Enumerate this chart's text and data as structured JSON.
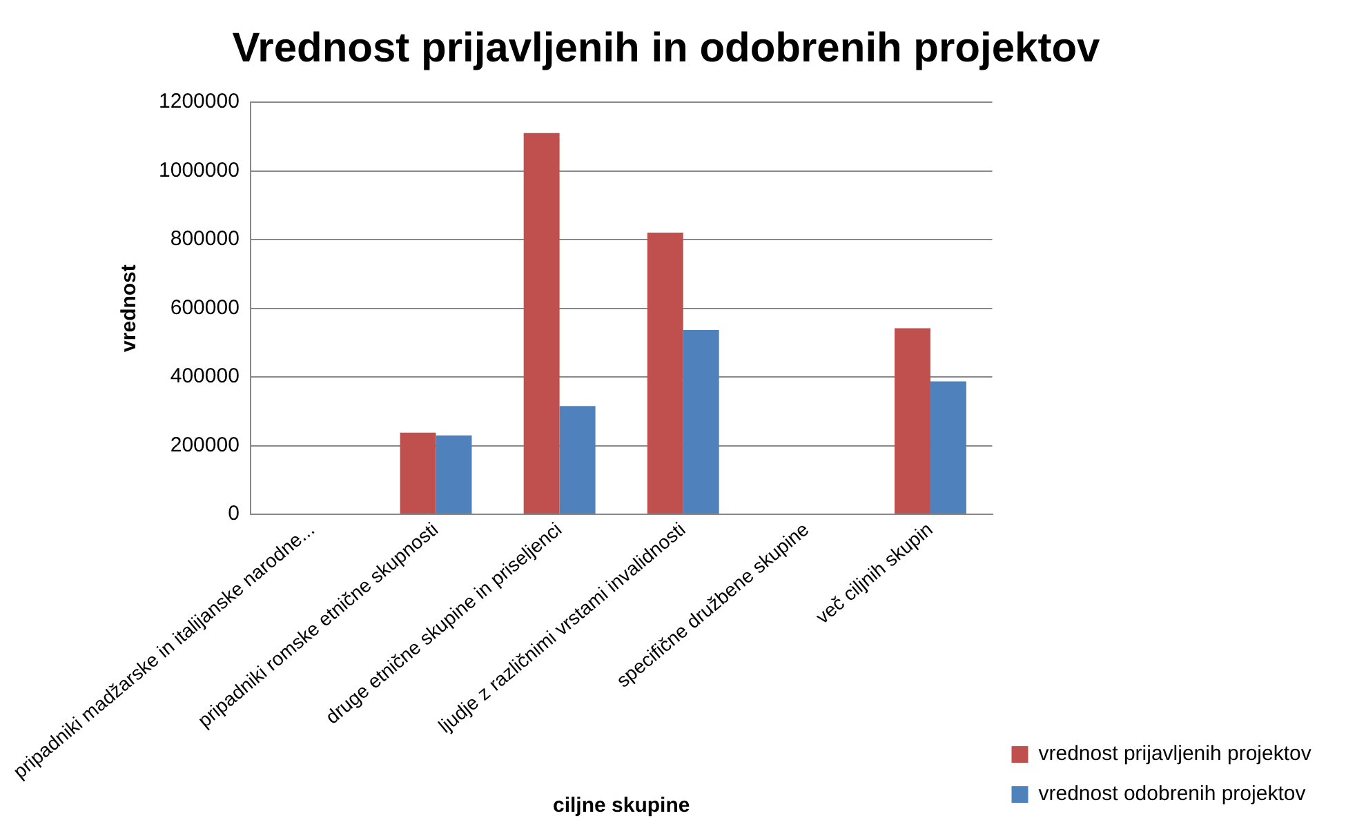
{
  "chart_data": {
    "type": "bar",
    "title": "Vrednost prijavljenih in odobrenih projektov",
    "xlabel": "ciljne skupine",
    "ylabel": "vrednost",
    "categories": [
      "pripadniki madžarske in italijanske narodne...",
      "pripadniki romske etnične skupnosti",
      "druge etnične skupine in priseljenci",
      "ljudje z različnimi vrstami invalidnosti",
      "specifične družbene skupine",
      "več ciljnih skupin"
    ],
    "series": [
      {
        "name": "vrednost prijavljenih projektov",
        "color": "#c0504d",
        "values": [
          null,
          238000,
          1110000,
          820000,
          null,
          542000
        ]
      },
      {
        "name": "vrednost odobrenih projektov",
        "color": "#4f81bd",
        "values": [
          null,
          230000,
          315000,
          537000,
          null,
          387000
        ]
      }
    ],
    "ylim": [
      0,
      1200000
    ],
    "yticks": [
      0,
      200000,
      400000,
      600000,
      800000,
      1000000,
      1200000
    ],
    "grid": "y",
    "legend": "right"
  }
}
